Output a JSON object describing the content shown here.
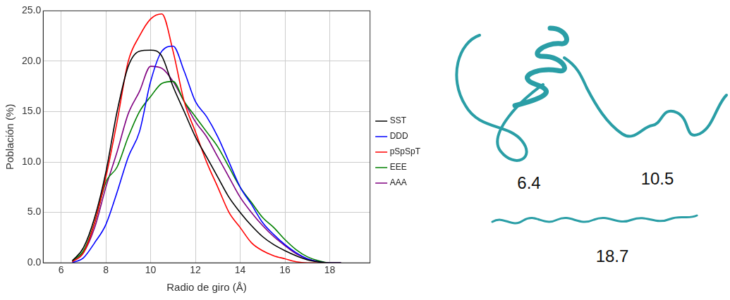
{
  "chart_data": {
    "type": "line",
    "x_label": "Radio de giro (Å)",
    "y_label": "Población (%)",
    "x": [
      6.5,
      7,
      7.5,
      8,
      8.5,
      9,
      9.5,
      10,
      10.5,
      11,
      11.5,
      12,
      12.5,
      13,
      13.5,
      14,
      14.5,
      15,
      15.5,
      16,
      16.5,
      17,
      17.5,
      18,
      18.5
    ],
    "series": [
      {
        "name": "SST",
        "color": "#000000",
        "values": [
          0.2,
          1.5,
          4.5,
          9,
          15,
          19.5,
          21,
          21.1,
          20.5,
          17.5,
          15,
          12.5,
          10.5,
          8.5,
          6.5,
          5,
          3.7,
          2.6,
          1.8,
          1.2,
          0.7,
          0.3,
          0.1,
          0,
          0
        ]
      },
      {
        "name": "DDD",
        "color": "#0000ff",
        "values": [
          0,
          0.5,
          2,
          3.8,
          7,
          10.5,
          13,
          18,
          21,
          21.5,
          19,
          16,
          14.5,
          12.5,
          10,
          7.5,
          5.8,
          4,
          2.8,
          1.8,
          1,
          0.4,
          0.1,
          0,
          0
        ]
      },
      {
        "name": "pSpSpT",
        "color": "#ff0000",
        "values": [
          0.1,
          1,
          4,
          8.5,
          14,
          20,
          22.5,
          24.2,
          24.7,
          21,
          16,
          13,
          10,
          7.5,
          5,
          3.5,
          2,
          1.2,
          0.7,
          0.4,
          0.1,
          0,
          0,
          0,
          0
        ]
      },
      {
        "name": "EEE",
        "color": "#008000",
        "values": [
          0.2,
          1.2,
          4,
          8,
          9.5,
          12.5,
          15,
          16.5,
          17.8,
          18,
          16,
          14.5,
          13,
          11.5,
          9.5,
          7.5,
          6,
          4.5,
          3.5,
          2.3,
          1.3,
          0.6,
          0.2,
          0,
          0
        ]
      },
      {
        "name": "AAA",
        "color": "#800080",
        "values": [
          0.1,
          1,
          3.5,
          7.5,
          11,
          14.8,
          17,
          19.5,
          19.3,
          18,
          16,
          14,
          12.5,
          10.5,
          8.5,
          6.5,
          5,
          3.7,
          2.6,
          1.7,
          0.9,
          0.4,
          0.1,
          0,
          0
        ]
      }
    ],
    "xlim": [
      5.2,
      19.8
    ],
    "xticks": [
      6,
      8,
      10,
      12,
      14,
      16,
      18
    ],
    "ylim": [
      0,
      25
    ],
    "yticks": [
      {
        "value": 0,
        "label": "0.0"
      },
      {
        "value": 5,
        "label": "5.0"
      },
      {
        "value": 10,
        "label": "10.0"
      },
      {
        "value": 15,
        "label": "15.0"
      },
      {
        "value": 20,
        "label": "20.0"
      },
      {
        "value": 25,
        "label": "25.0"
      }
    ],
    "grid": true,
    "legend": "right"
  },
  "structures": [
    {
      "label": "6.4"
    },
    {
      "label": "10.5"
    },
    {
      "label": "18.7"
    }
  ]
}
